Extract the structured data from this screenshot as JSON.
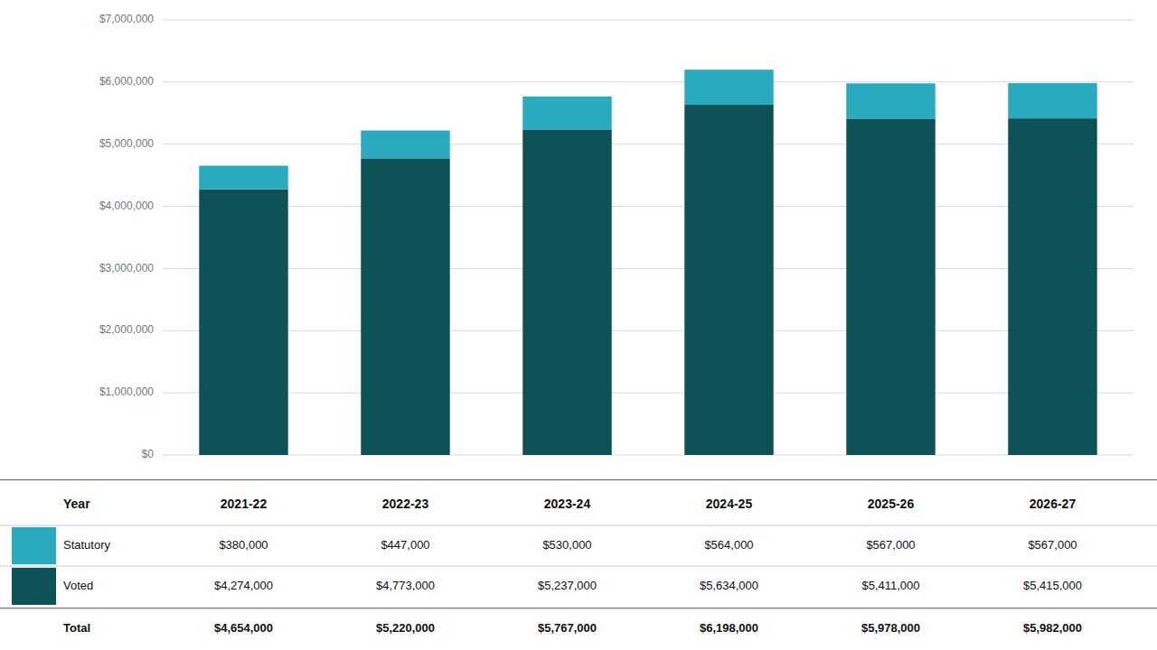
{
  "chart_data": {
    "type": "bar",
    "stacked": true,
    "grid": true,
    "tick_labels": "y",
    "categories": [
      "2021-22",
      "2022-23",
      "2023-24",
      "2024-25",
      "2025-26",
      "2026-27"
    ],
    "series": [
      {
        "name": "Voted",
        "color": "#0d5257",
        "values": [
          4274000,
          4773000,
          5237000,
          5634000,
          5411000,
          5415000
        ],
        "value_labels": [
          "$4,274,000",
          "$4,773,000",
          "$5,237,000",
          "$5,634,000",
          "$5,411,000",
          "$5,415,000"
        ]
      },
      {
        "name": "Statutory",
        "color": "#2aaabf",
        "values": [
          380000,
          447000,
          530000,
          564000,
          567000,
          567000
        ],
        "value_labels": [
          "$380,000",
          "$447,000",
          "$530,000",
          "$564,000",
          "$567,000",
          "$567,000"
        ]
      }
    ],
    "table_header": "Year",
    "total_label": "Total",
    "totals": [
      4654000,
      5220000,
      5767000,
      6198000,
      5978000,
      5982000
    ],
    "total_labels": [
      "$4,654,000",
      "$5,220,000",
      "$5,767,000",
      "$6,198,000",
      "$5,978,000",
      "$5,982,000"
    ],
    "ylim": [
      0,
      7000000
    ],
    "yticks": [
      {
        "value": 0,
        "label": "$0"
      },
      {
        "value": 1000000,
        "label": "$1,000,000"
      },
      {
        "value": 2000000,
        "label": "$2,000,000"
      },
      {
        "value": 3000000,
        "label": "$3,000,000"
      },
      {
        "value": 4000000,
        "label": "$4,000,000"
      },
      {
        "value": 5000000,
        "label": "$5,000,000"
      },
      {
        "value": 6000000,
        "label": "$6,000,000"
      },
      {
        "value": 7000000,
        "label": "$7,000,000"
      }
    ]
  }
}
